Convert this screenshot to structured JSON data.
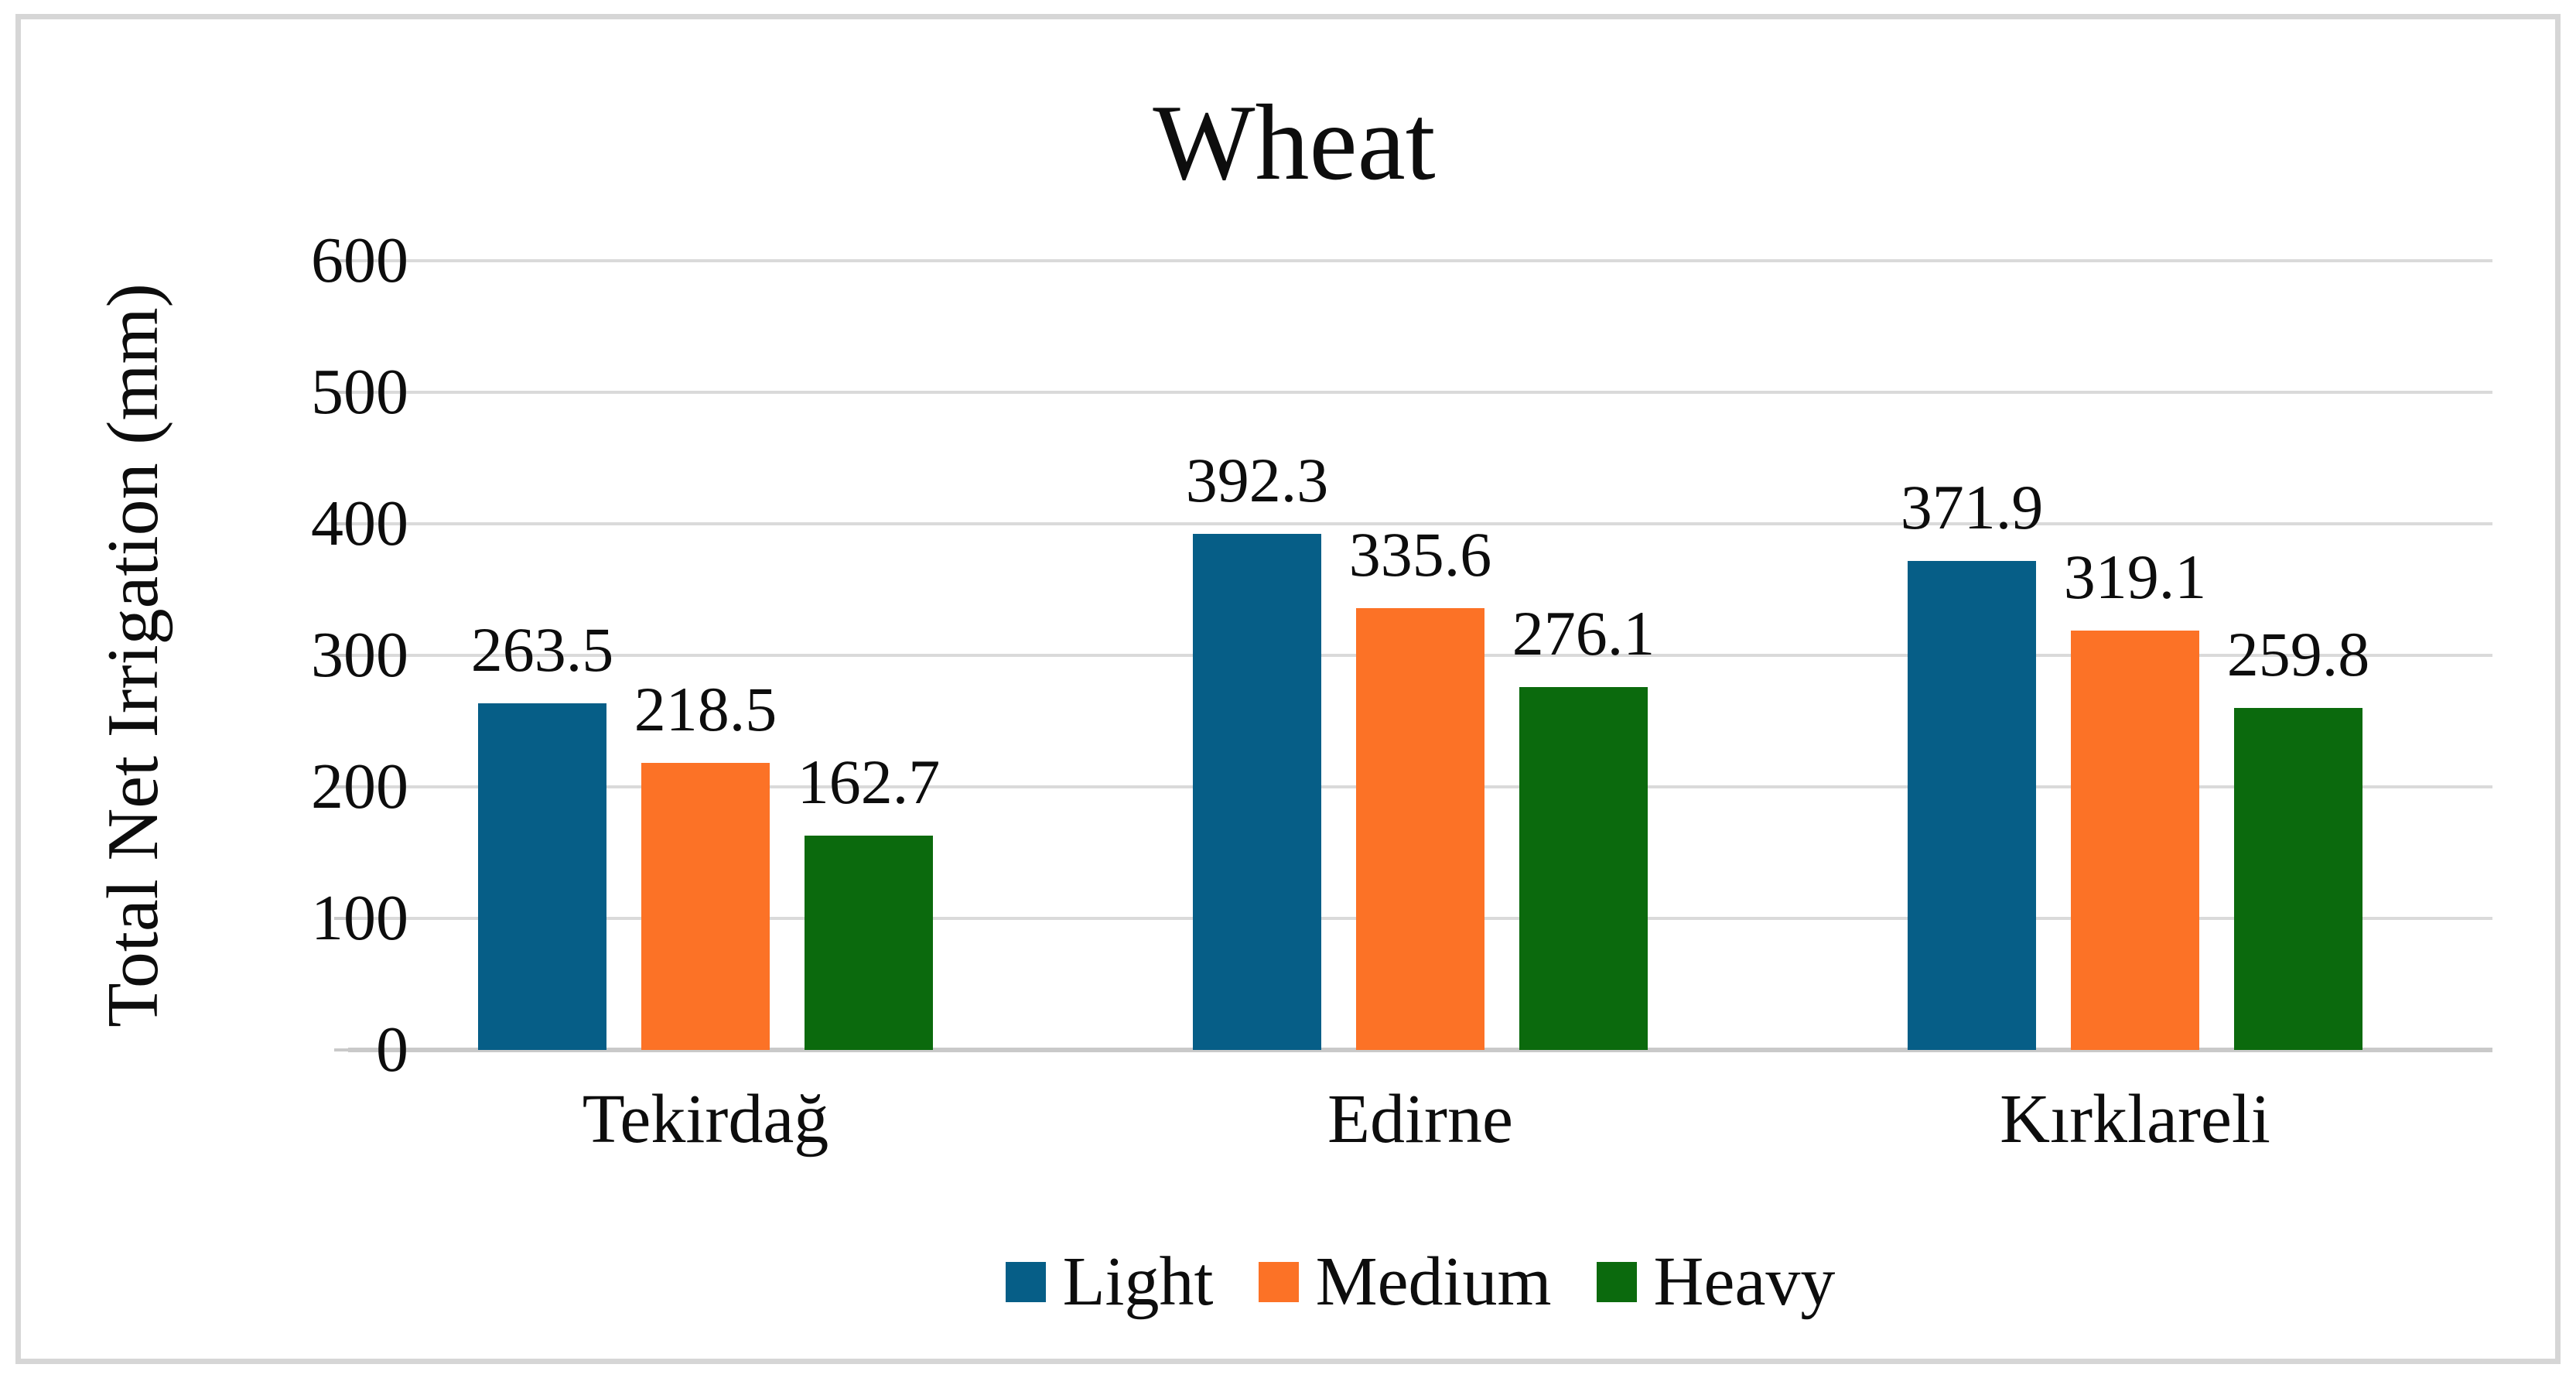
{
  "figure": {
    "title": "Wheat",
    "ylabel": "Total Net Irrigation (mm)"
  },
  "chart_data": {
    "type": "bar",
    "title": "Wheat",
    "xlabel": "",
    "ylabel": "Total Net Irrigation (mm)",
    "categories": [
      "Tekirdağ",
      "Edirne",
      "Kırklareli"
    ],
    "series": [
      {
        "name": "Light",
        "color": "#065e87",
        "values": [
          263.5,
          392.3,
          371.9
        ]
      },
      {
        "name": "Medium",
        "color": "#fc7226",
        "values": [
          218.5,
          335.6,
          319.1
        ]
      },
      {
        "name": "Heavy",
        "color": "#0b6a0d",
        "values": [
          162.7,
          276.1,
          259.8
        ]
      }
    ],
    "yticks": [
      0,
      100,
      200,
      300,
      400,
      500,
      600
    ],
    "ylim": [
      0,
      600
    ],
    "grid": true,
    "data_labels": true,
    "data_label_format": "one-decimal",
    "legend_position": "bottom"
  },
  "style": {
    "gridline_color": "#dadada",
    "axis_line_color": "#c9c9c9",
    "frame_border_color": "#d6d6d6",
    "text_color": "#0d0d0d",
    "background": "#ffffff"
  }
}
